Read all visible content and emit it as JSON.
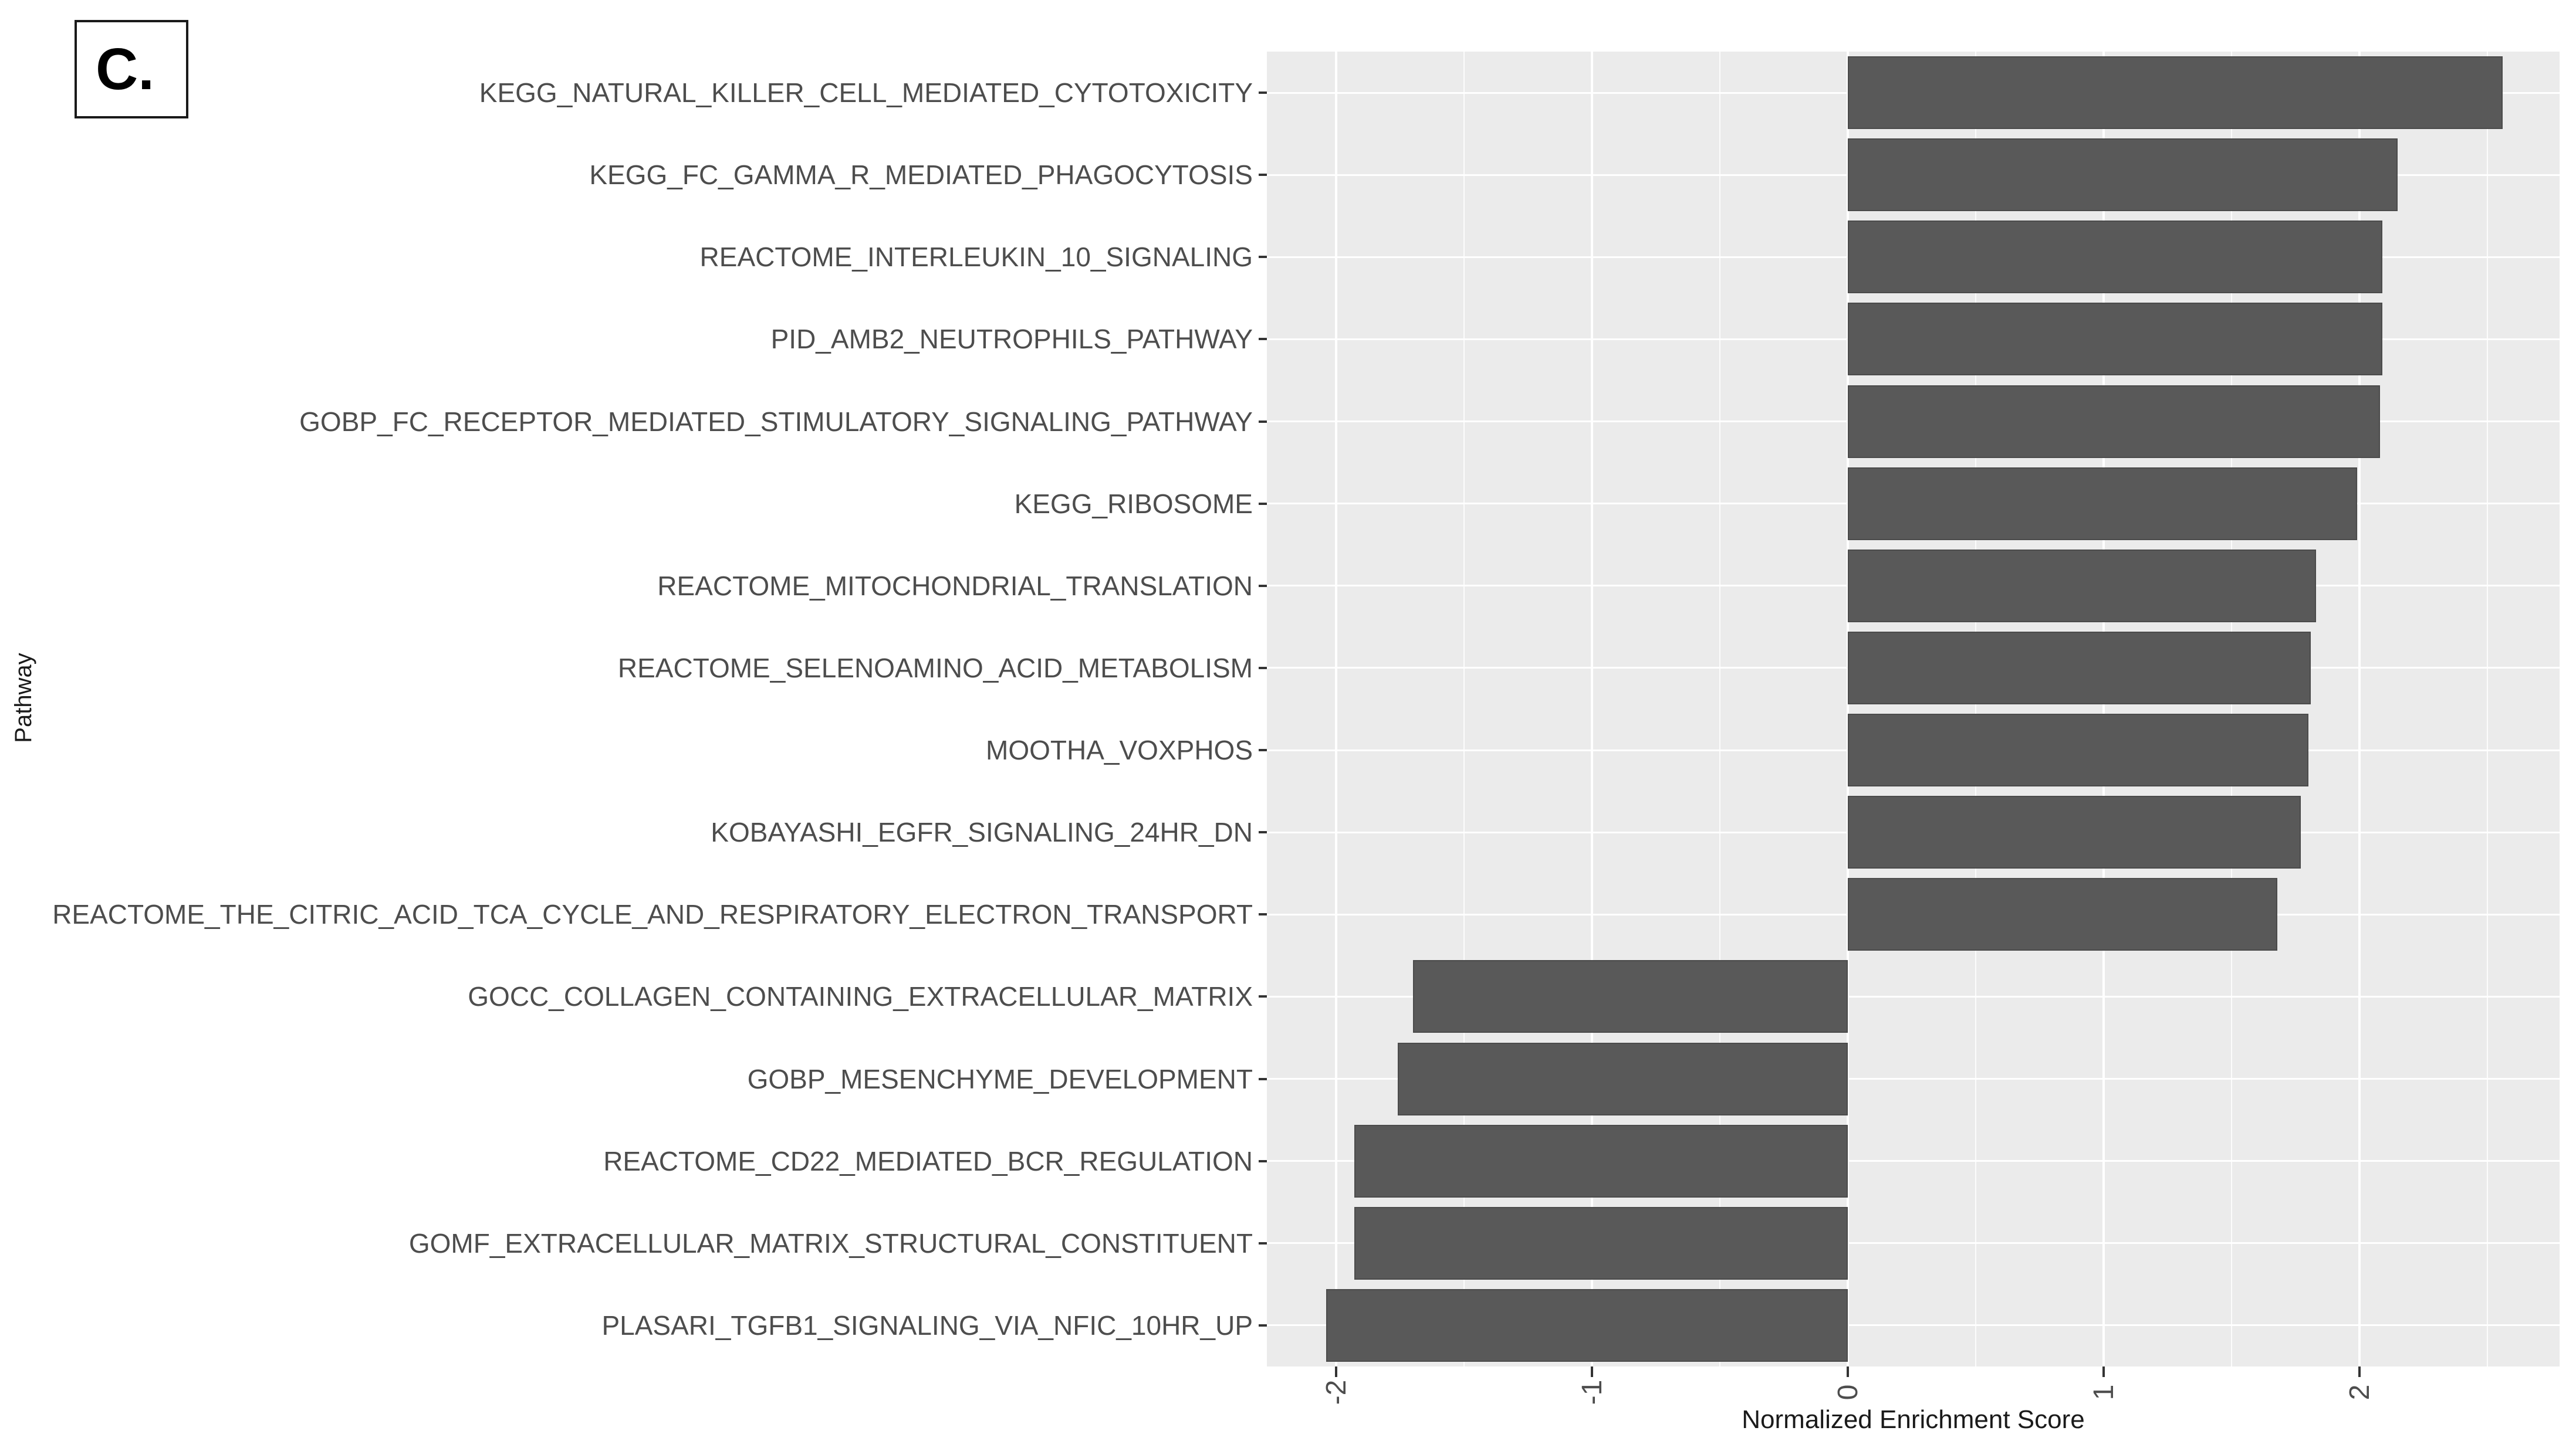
{
  "panel_label": "C.",
  "chart_data": {
    "type": "bar",
    "orientation": "horizontal",
    "title": "",
    "xlabel": "Normalized Enrichment Score",
    "ylabel": "Pathway",
    "categories": [
      "KEGG_NATURAL_KILLER_CELL_MEDIATED_CYTOTOXICITY",
      "KEGG_FC_GAMMA_R_MEDIATED_PHAGOCYTOSIS",
      "REACTOME_INTERLEUKIN_10_SIGNALING",
      "PID_AMB2_NEUTROPHILS_PATHWAY",
      "GOBP_FC_RECEPTOR_MEDIATED_STIMULATORY_SIGNALING_PATHWAY",
      "KEGG_RIBOSOME",
      "REACTOME_MITOCHONDRIAL_TRANSLATION",
      "REACTOME_SELENOAMINO_ACID_METABOLISM",
      "MOOTHA_VOXPHOS",
      "KOBAYASHI_EGFR_SIGNALING_24HR_DN",
      "REACTOME_THE_CITRIC_ACID_TCA_CYCLE_AND_RESPIRATORY_ELECTRON_TRANSPORT",
      "GOCC_COLLAGEN_CONTAINING_EXTRACELLULAR_MATRIX",
      "GOBP_MESENCHYME_DEVELOPMENT",
      "REACTOME_CD22_MEDIATED_BCR_REGULATION",
      "GOMF_EXTRACELLULAR_MATRIX_STRUCTURAL_CONSTITUENT",
      "PLASARI_TGFB1_SIGNALING_VIA_NFIC_10HR_UP"
    ],
    "values": [
      2.56,
      2.15,
      2.09,
      2.09,
      2.08,
      1.99,
      1.83,
      1.81,
      1.8,
      1.77,
      1.68,
      -1.7,
      -1.76,
      -1.93,
      -1.93,
      -2.04
    ],
    "xlim": [
      -2.27,
      2.78
    ],
    "x_major_ticks": [
      -2,
      -1,
      0,
      1,
      2
    ],
    "x_tick_labels": [
      "-2",
      "-1",
      "0",
      "1",
      "2"
    ],
    "x_minor_ticks": [
      -1.5,
      -0.5,
      0.5,
      1.5,
      2.5
    ],
    "grid": true,
    "legend": false,
    "colors": {
      "bar": "#595959",
      "panel_background": "#ebebeb",
      "gridline": "#ffffff",
      "axis_text": "#4d4d4d",
      "axis_title": "#1a1a1a",
      "tick_mark": "#333333"
    }
  }
}
